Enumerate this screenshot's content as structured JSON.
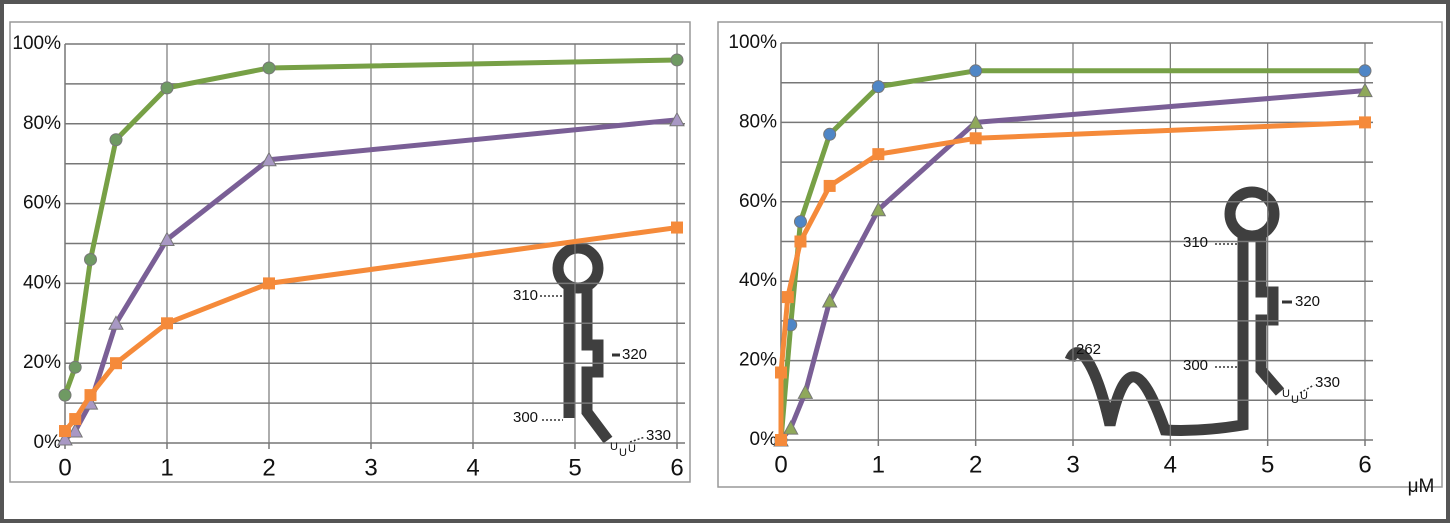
{
  "chart_data": [
    {
      "type": "line",
      "xlim": [
        0,
        6
      ],
      "xticks": [
        0,
        1,
        2,
        3,
        4,
        5,
        6
      ],
      "ylim": [
        0,
        100
      ],
      "yticks": [
        {
          "value": 0,
          "label": "0%"
        },
        {
          "value": 20,
          "label": "20%"
        },
        {
          "value": 40,
          "label": "40%"
        },
        {
          "value": 60,
          "label": "60%"
        },
        {
          "value": 80,
          "label": "80%"
        },
        {
          "value": 100,
          "label": "100%"
        }
      ],
      "minor_yticks": [
        10,
        30,
        50,
        70,
        90
      ],
      "grid": true,
      "series": [
        {
          "color": "#77a046",
          "marker": "circle",
          "marker_color": "#6f9a63",
          "x": [
            0,
            0.1,
            0.25,
            0.5,
            1,
            2,
            6
          ],
          "values": [
            12,
            19,
            46,
            76,
            89,
            94,
            96
          ]
        },
        {
          "color": "#7a5f96",
          "marker": "triangle",
          "marker_color": "#a898c4",
          "x": [
            0,
            0.1,
            0.25,
            0.5,
            1,
            2,
            6
          ],
          "values": [
            1,
            3,
            10,
            30,
            51,
            71,
            81
          ]
        },
        {
          "color": "#f58a3a",
          "marker": "square",
          "marker_color": "#f58a3a",
          "x": [
            0,
            0.1,
            0.25,
            0.5,
            1,
            2,
            6
          ],
          "values": [
            3,
            6,
            12,
            20,
            30,
            40,
            54
          ]
        }
      ],
      "annotations": [
        "310",
        "320",
        "300",
        "330",
        "U",
        "U",
        "U"
      ]
    },
    {
      "type": "line",
      "xlim": [
        0,
        6
      ],
      "xticks": [
        0,
        1,
        2,
        3,
        4,
        5,
        6
      ],
      "ylim": [
        0,
        100
      ],
      "yticks": [
        {
          "value": 0,
          "label": "0%"
        },
        {
          "value": 20,
          "label": "20%"
        },
        {
          "value": 40,
          "label": "40%"
        },
        {
          "value": 60,
          "label": "60%"
        },
        {
          "value": 80,
          "label": "80%"
        },
        {
          "value": 100,
          "label": "100%"
        }
      ],
      "minor_yticks": [
        10,
        30,
        50,
        70,
        90
      ],
      "grid": true,
      "x_label": "μM",
      "series": [
        {
          "color": "#77a046",
          "marker": "circle",
          "marker_color": "#4f86c6",
          "x": [
            0,
            0.1,
            0.2,
            0.5,
            1,
            2,
            6
          ],
          "values": [
            0,
            29,
            55,
            77,
            89,
            93,
            93
          ]
        },
        {
          "color": "#7a5f96",
          "marker": "triangle",
          "marker_color": "#8fa85a",
          "x": [
            0,
            0.1,
            0.25,
            0.5,
            1,
            2,
            6
          ],
          "values": [
            0,
            3,
            12,
            35,
            58,
            80,
            88
          ]
        },
        {
          "color": "#f58a3a",
          "marker": "square",
          "marker_color": "#f58a3a",
          "x": [
            0,
            0,
            0.07,
            0.2,
            0.5,
            1,
            2,
            6
          ],
          "values": [
            0,
            17,
            36,
            50,
            64,
            72,
            76,
            80
          ]
        }
      ],
      "annotations": [
        "310",
        "320",
        "300",
        "330",
        "262",
        "U",
        "U",
        "U"
      ]
    }
  ]
}
